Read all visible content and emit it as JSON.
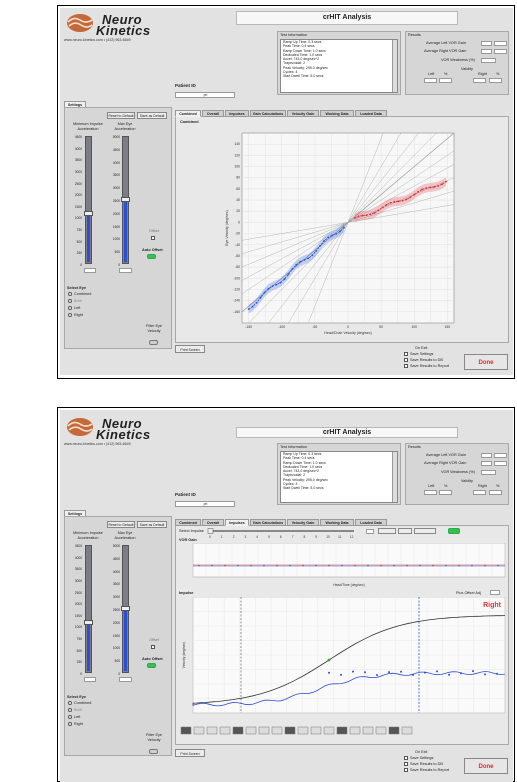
{
  "logo": {
    "line1": "Neuro",
    "line2": "Kinetics",
    "url": "www.neuro-kinetics.com • (412) 963-6649"
  },
  "window_title": "crHIT Analysis",
  "patient": {
    "label": "Patient ID",
    "value": "prt"
  },
  "test_info": {
    "label": "Test Information",
    "rows": [
      "Ramp Up Time: 0.3 secs",
      "Peak Time: 0.4 secs",
      "Ramp Down Time: 1.0 secs",
      "Dedicated Time: 1.0 secs",
      "Accel: 743.0 deg/sec^2",
      "Trapezoidal: 2",
      "Peak Velocity: 295.0 deg/sec",
      "Cycles: 4",
      "Start Dwell Time: 5.0 secs"
    ]
  },
  "results": {
    "label": "Results",
    "avg_left": "Average Left VOR Gain",
    "avg_right": "Average Right VOR Gain",
    "vor_weakness": "VOR Weakness (%)",
    "validity": "Validity",
    "left": "Left",
    "right": "Right",
    "pct": "%"
  },
  "settings": {
    "tab": "Settings",
    "reset_default": "Reset to Default",
    "save_default": "Save as Default",
    "min_impulse": "Minimum Impulse Acceleration",
    "max_eye": "Max Eye Acceleration",
    "scale_left": [
      "4500",
      "4000",
      "3500",
      "3000",
      "2500",
      "2000",
      "1500",
      "1000",
      "750",
      "500",
      "250",
      "0"
    ],
    "scale_right": [
      "5000",
      "4500",
      "4000",
      "3500",
      "3000",
      "2500",
      "2000",
      "1500",
      "1000",
      "500",
      "0"
    ],
    "offset": "Offset",
    "auto_offset": "Auto Offset",
    "select_eye": "Select Eye",
    "eyes": [
      "Combined",
      "Both",
      "Left",
      "Right"
    ],
    "filter_eye": "Filter Eye Velocity"
  },
  "tabs": [
    "Combined",
    "Overall",
    "Impulses",
    "Gain Calculations",
    "Velocity Gain",
    "Working Data",
    "Loaded Data"
  ],
  "bottom": {
    "print_screen": "Print Screen",
    "on_exit": "On Exit",
    "save_settings": "Save Settings",
    "save_db": "Save Results to DB",
    "save_report": "Save Results to Report",
    "done": "Done"
  },
  "combined_chart": {
    "title": "Combined",
    "ylabel": "Eye Velocity (deg/sec)",
    "xlabel": "Head/Chair Velocity (deg/sec)",
    "yticks": [
      "140",
      "120",
      "100",
      "80",
      "60",
      "40",
      "20",
      "0",
      "-20",
      "-40",
      "-60",
      "-80",
      "-100",
      "-120",
      "-140",
      "-160"
    ],
    "xticks": [
      "-150",
      "-100",
      "-50",
      "0",
      "50",
      "100",
      "150"
    ],
    "colors": {
      "left": "#2356d6",
      "right": "#d8343a",
      "line": "#444444"
    }
  },
  "impulses": {
    "select_impulse": "Select Impulse",
    "nums": [
      "0",
      "1",
      "2",
      "3",
      "4",
      "5",
      "6",
      "7",
      "8",
      "9",
      "10",
      "11",
      "12"
    ],
    "vor_gain": "VOR Gain",
    "peak_label": "Impulse",
    "gain_xlabel": "Head/Time (deg/sec)",
    "velocity": "Velocity (deg/sec)",
    "right": "Right",
    "plus_offset": "Plus Offset Adj"
  }
}
